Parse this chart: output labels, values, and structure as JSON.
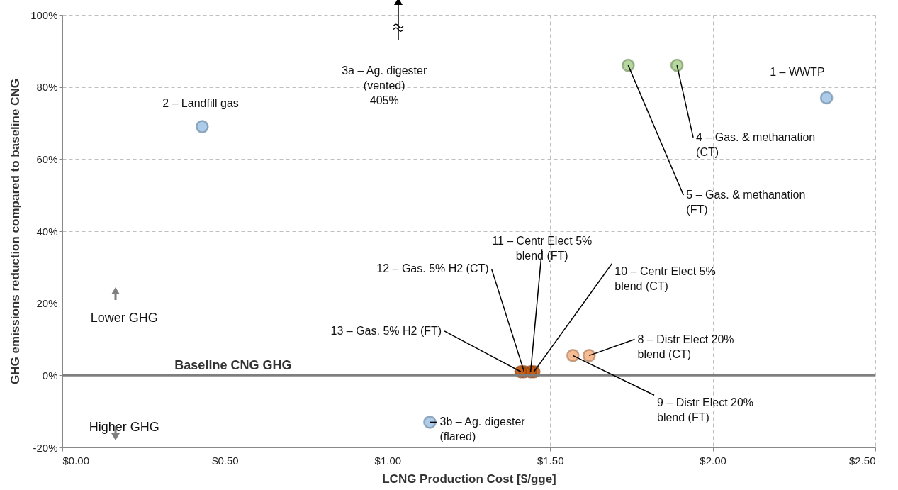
{
  "chart_data": {
    "type": "scatter",
    "xlabel": "LCNG Production  Cost [$/gge]",
    "ylabel": "GHG emissions reduction compared to baseline CNG",
    "series": [
      {
        "color": "#9dc3e6",
        "x": [
          2.35,
          0.43,
          1.13
        ],
        "values": [
          77,
          69,
          -13
        ]
      },
      {
        "color": "#a9d18e",
        "x": [
          1.89,
          1.74
        ],
        "values": [
          86,
          86
        ]
      },
      {
        "color": "#f4b183",
        "x": [
          1.62,
          1.57
        ],
        "values": [
          5.5,
          5.5
        ]
      },
      {
        "color": "#c55a11",
        "x": [
          1.45,
          1.44,
          1.42,
          1.41
        ],
        "values": [
          1,
          1,
          1,
          1
        ]
      }
    ],
    "xlim": [
      0,
      2.5
    ],
    "xticks": [
      {
        "value": 0,
        "label": "$0.00"
      },
      {
        "value": 0.5,
        "label": "$0.50"
      },
      {
        "value": 1,
        "label": "$1.00"
      },
      {
        "value": 1.5,
        "label": "$1.50"
      },
      {
        "value": 2,
        "label": "$2.00"
      },
      {
        "value": 2.5,
        "label": "$2.50"
      }
    ],
    "ylim": [
      -20,
      100
    ],
    "yticks": [
      {
        "value": -20,
        "label": "-20%"
      },
      {
        "value": 0,
        "label": "0%"
      },
      {
        "value": 20,
        "label": "20%"
      },
      {
        "value": 40,
        "label": "40%"
      },
      {
        "value": 60,
        "label": "60%"
      },
      {
        "value": 80,
        "label": "80%"
      },
      {
        "value": 100,
        "label": "100%"
      }
    ],
    "ref_lines": [
      {
        "axis": "y",
        "value": 0,
        "label": "Baseline CNG GHG",
        "color": "#7f7f7f"
      }
    ],
    "annotations": [
      {
        "text": "1 – WWTP",
        "x": 2.35,
        "y": 77
      },
      {
        "text": "2 – Landfill gas",
        "x": 0.43,
        "y": 69
      },
      {
        "text": "3b – Ag. digester\n(flared)",
        "x": 1.13,
        "y": -13
      },
      {
        "text": "4 – Gas. & methanation\n(CT)",
        "x": 1.89,
        "y": 86
      },
      {
        "text": "5 – Gas. & methanation\n(FT)",
        "x": 1.74,
        "y": 86
      },
      {
        "text": "8 – Distr Elect  20%\nblend (CT)",
        "x": 1.62,
        "y": 5.5
      },
      {
        "text": "9 – Distr Elect  20%\nblend (FT)",
        "x": 1.57,
        "y": 5.5
      },
      {
        "text": "10 – Centr Elect  5%\nblend (CT)",
        "x": 1.45,
        "y": 1
      },
      {
        "text": "11 – Centr Elect  5%\nblend (FT)",
        "x": 1.44,
        "y": 1
      },
      {
        "text": "12 – Gas. 5% H2 (CT)",
        "x": 1.42,
        "y": 1
      },
      {
        "text": "13 – Gas. 5% H2 (FT)",
        "x": 1.41,
        "y": 1
      },
      "3a – Ag. digester\n(vented)\n405%",
      "Lower GHG",
      "Higher GHG"
    ],
    "grid": true,
    "legend": false,
    "marker": "circle"
  }
}
